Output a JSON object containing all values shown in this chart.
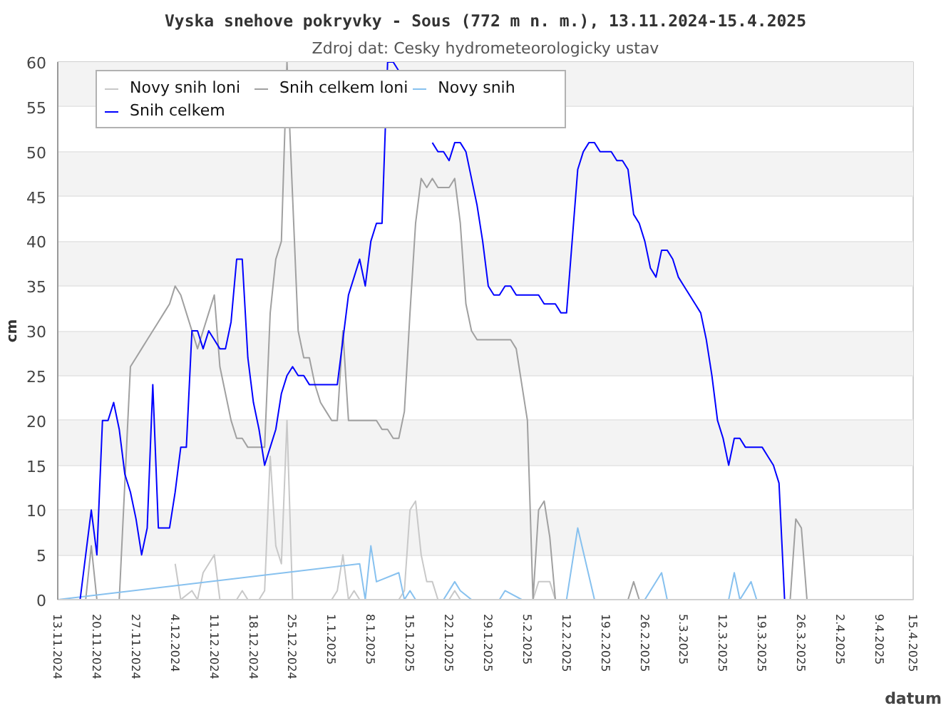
{
  "chart_data": {
    "type": "line",
    "title": "Vyska snehove pokryvky - Sous (772 m n. m.), 13.11.2024-15.4.2025",
    "subtitle": "Zdroj dat: Cesky hydrometeorologicky ustav",
    "xlabel": "datum",
    "ylabel": "cm",
    "xlim": [
      "2024-11-13",
      "2025-04-15"
    ],
    "ylim": [
      0,
      60
    ],
    "yticks": [
      0,
      5,
      10,
      15,
      20,
      25,
      30,
      35,
      40,
      45,
      50,
      55,
      60
    ],
    "grid": "y",
    "legend": "top left",
    "xticks": [
      {
        "value": "2024-11-13",
        "label": "13.11.2024"
      },
      {
        "value": "2024-11-20",
        "label": "20.11.2024"
      },
      {
        "value": "2024-11-27",
        "label": "27.11.2024"
      },
      {
        "value": "2024-12-04",
        "label": "4.12.2024"
      },
      {
        "value": "2024-12-11",
        "label": "11.12.2024"
      },
      {
        "value": "2024-12-18",
        "label": "18.12.2024"
      },
      {
        "value": "2024-12-25",
        "label": "25.12.2024"
      },
      {
        "value": "2025-01-01",
        "label": "1.1.2025"
      },
      {
        "value": "2025-01-08",
        "label": "8.1.2025"
      },
      {
        "value": "2025-01-15",
        "label": "15.1.2025"
      },
      {
        "value": "2025-01-22",
        "label": "22.1.2025"
      },
      {
        "value": "2025-01-29",
        "label": "29.1.2025"
      },
      {
        "value": "2025-02-05",
        "label": "5.2.2025"
      },
      {
        "value": "2025-02-12",
        "label": "12.2.2025"
      },
      {
        "value": "2025-02-19",
        "label": "19.2.2025"
      },
      {
        "value": "2025-02-26",
        "label": "26.2.2025"
      },
      {
        "value": "2025-03-05",
        "label": "5.3.2025"
      },
      {
        "value": "2025-03-12",
        "label": "12.3.2025"
      },
      {
        "value": "2025-03-19",
        "label": "19.3.2025"
      },
      {
        "value": "2025-03-26",
        "label": "26.3.2025"
      },
      {
        "value": "2025-04-02",
        "label": "2.4.2025"
      },
      {
        "value": "2025-04-09",
        "label": "9.4.2025"
      },
      {
        "value": "2025-04-15",
        "label": "15.4.2025"
      }
    ],
    "series": [
      {
        "name": "Novy snih loni",
        "color": "#c8c8c8",
        "x": [
          "2024-12-04",
          "2024-12-05",
          "2024-12-07",
          "2024-12-08",
          "2024-12-09",
          "2024-12-10",
          "2024-12-11",
          "2024-12-12",
          "2024-12-15",
          "2024-12-16",
          "2024-12-17",
          "2024-12-19",
          "2024-12-20",
          "2024-12-21",
          "2024-12-22",
          "2024-12-23",
          "2024-12-24",
          "2024-12-25",
          "2024-12-31",
          "2025-01-01",
          "2025-01-02",
          "2025-01-03",
          "2025-01-04",
          "2025-01-05",
          "2025-01-06",
          "2025-01-13",
          "2025-01-14",
          "2025-01-15",
          "2025-01-16",
          "2025-01-17",
          "2025-01-18",
          "2025-01-19",
          "2025-01-20",
          "2025-01-22",
          "2025-01-23",
          "2025-01-24",
          "2025-02-06",
          "2025-02-07",
          "2025-02-09",
          "2025-02-10"
        ],
        "values": [
          4,
          0,
          1,
          0,
          3,
          4,
          5,
          0,
          0,
          1,
          0,
          0,
          1,
          16,
          6,
          4,
          20,
          0,
          0,
          0,
          1,
          5,
          0,
          1,
          0,
          0,
          1,
          10,
          11,
          5,
          2,
          2,
          0,
          0,
          1,
          0,
          0,
          2,
          2,
          0
        ]
      },
      {
        "name": "Snih celkem loni",
        "color": "#a0a0a0",
        "x": [
          "2024-11-18",
          "2024-11-19",
          "2024-11-20",
          "2024-11-24",
          "2024-11-25",
          "2024-11-26",
          "2024-11-27",
          "2024-11-28",
          "2024-11-29",
          "2024-11-30",
          "2024-12-01",
          "2024-12-02",
          "2024-12-03",
          "2024-12-04",
          "2024-12-05",
          "2024-12-06",
          "2024-12-07",
          "2024-12-08",
          "2024-12-09",
          "2024-12-10",
          "2024-12-11",
          "2024-12-12",
          "2024-12-13",
          "2024-12-14",
          "2024-12-15",
          "2024-12-16",
          "2024-12-17",
          "2024-12-18",
          "2024-12-19",
          "2024-12-20",
          "2024-12-21",
          "2024-12-22",
          "2024-12-23",
          "2024-12-24",
          "2024-12-25",
          "2024-12-26",
          "2024-12-27",
          "2024-12-28",
          "2024-12-29",
          "2024-12-30",
          "2024-12-31",
          "2025-01-01",
          "2025-01-02",
          "2025-01-03",
          "2025-01-04",
          "2025-01-09",
          "2025-01-10",
          "2025-01-11",
          "2025-01-12",
          "2025-01-13",
          "2025-01-14",
          "2025-01-15",
          "2025-01-16",
          "2025-01-17",
          "2025-01-18",
          "2025-01-19",
          "2025-01-20",
          "2025-01-21",
          "2025-01-22",
          "2025-01-23",
          "2025-01-24",
          "2025-01-25",
          "2025-01-26",
          "2025-01-27",
          "2025-02-02",
          "2025-02-03",
          "2025-02-04",
          "2025-02-05",
          "2025-02-06",
          "2025-02-07",
          "2025-02-08",
          "2025-02-09",
          "2025-02-10",
          "2025-02-23",
          "2025-02-24",
          "2025-02-25",
          "2025-03-24",
          "2025-03-25",
          "2025-03-26",
          "2025-03-27"
        ],
        "values": [
          0,
          6,
          0,
          0,
          13,
          26,
          27,
          28,
          29,
          30,
          31,
          32,
          33,
          35,
          34,
          32,
          30,
          28,
          30,
          32,
          34,
          26,
          23,
          20,
          18,
          18,
          17,
          17,
          17,
          17,
          32,
          38,
          40,
          60,
          45,
          30,
          27,
          27,
          24,
          22,
          21,
          20,
          20,
          30,
          20,
          20,
          19,
          19,
          18,
          18,
          21,
          32,
          42,
          47,
          46,
          47,
          46,
          46,
          46,
          47,
          42,
          33,
          30,
          29,
          29,
          28,
          24,
          20,
          0,
          10,
          11,
          7,
          0,
          0,
          2,
          0,
          0,
          9,
          8,
          0
        ]
      },
      {
        "name": "Novy snih",
        "color": "#87c1ef",
        "x": [
          "2024-11-13",
          "2025-01-06",
          "2025-01-07",
          "2025-01-08",
          "2025-01-09",
          "2025-01-13",
          "2025-01-14",
          "2025-01-15",
          "2025-01-16",
          "2025-01-21",
          "2025-01-23",
          "2025-01-24",
          "2025-01-26",
          "2025-01-31",
          "2025-02-01",
          "2025-02-04",
          "2025-02-12",
          "2025-02-14",
          "2025-02-17",
          "2025-02-26",
          "2025-02-27",
          "2025-03-01",
          "2025-03-02",
          "2025-03-13",
          "2025-03-14",
          "2025-03-15",
          "2025-03-17",
          "2025-03-18"
        ],
        "values": [
          0,
          4,
          0,
          6,
          2,
          3,
          0,
          1,
          0,
          0,
          2,
          1,
          0,
          0,
          1,
          0,
          0,
          8,
          0,
          0,
          1,
          3,
          0,
          0,
          3,
          0,
          2,
          0
        ]
      },
      {
        "name": "Snih celkem",
        "color": "#0000ff",
        "x": [
          "2024-11-17",
          "2024-11-19",
          "2024-11-20",
          "2024-11-21",
          "2024-11-22",
          "2024-11-23",
          "2024-11-24",
          "2024-11-25",
          "2024-11-26",
          "2024-11-27",
          "2024-11-28",
          "2024-11-29",
          "2024-11-30",
          "2024-12-01",
          "2024-12-02",
          "2024-12-03",
          "2024-12-04",
          "2024-12-05",
          "2024-12-06",
          "2024-12-07",
          "2024-12-08",
          "2024-12-09",
          "2024-12-10",
          "2024-12-11",
          "2024-12-12",
          "2024-12-13",
          "2024-12-14",
          "2024-12-15",
          "2024-12-16",
          "2024-12-17",
          "2024-12-18",
          "2024-12-19",
          "2024-12-20",
          "2024-12-21",
          "2024-12-22",
          "2024-12-23",
          "2024-12-24",
          "2024-12-25",
          "2024-12-26",
          "2024-12-27",
          "2024-12-28",
          "2025-01-02",
          "2025-01-03",
          "2025-01-04",
          "2025-01-05",
          "2025-01-06",
          "2025-01-07",
          "2025-01-08",
          "2025-01-09",
          "2025-01-10",
          "2025-01-11",
          "2025-01-12",
          "2025-01-13",
          "2025-01-14",
          "2025-01-15",
          "2025-01-16",
          "2025-01-17",
          "2025-01-18",
          "2025-01-19",
          "2025-01-20",
          "2025-01-21",
          "2025-01-22",
          "2025-01-23",
          "2025-01-24",
          "2025-01-25",
          "2025-01-26",
          "2025-01-27",
          "2025-01-28",
          "2025-01-29",
          "2025-01-30",
          "2025-01-31",
          "2025-02-01",
          "2025-02-02",
          "2025-02-03",
          "2025-02-07",
          "2025-02-08",
          "2025-02-10",
          "2025-02-11",
          "2025-02-12",
          "2025-02-13",
          "2025-02-14",
          "2025-02-15",
          "2025-02-16",
          "2025-02-17",
          "2025-02-18",
          "2025-02-20",
          "2025-02-21",
          "2025-02-22",
          "2025-02-23",
          "2025-02-24",
          "2025-02-25",
          "2025-02-26",
          "2025-02-27",
          "2025-02-28",
          "2025-03-01",
          "2025-03-02",
          "2025-03-03",
          "2025-03-04",
          "2025-03-05",
          "2025-03-06",
          "2025-03-07",
          "2025-03-08",
          "2025-03-09",
          "2025-03-10",
          "2025-03-11",
          "2025-03-12",
          "2025-03-13",
          "2025-03-14",
          "2025-03-15",
          "2025-03-16",
          "2025-03-19",
          "2025-03-20",
          "2025-03-21",
          "2025-03-22",
          "2025-03-23"
        ],
        "values": [
          0,
          10,
          5,
          20,
          20,
          22,
          19,
          14,
          12,
          9,
          5,
          8,
          24,
          8,
          8,
          8,
          12,
          17,
          17,
          30,
          30,
          28,
          30,
          29,
          28,
          28,
          31,
          38,
          38,
          27,
          22,
          19,
          15,
          17,
          19,
          23,
          25,
          26,
          25,
          25,
          24,
          24,
          29,
          34,
          36,
          38,
          35,
          40,
          42,
          42,
          60,
          60,
          59,
          null,
          null,
          null,
          null,
          null,
          51,
          50,
          50,
          49,
          51,
          51,
          50,
          47,
          44,
          40,
          35,
          34,
          34,
          35,
          35,
          34,
          34,
          33,
          33,
          32,
          32,
          40,
          48,
          50,
          51,
          51,
          50,
          50,
          49,
          49,
          48,
          43,
          42,
          40,
          37,
          36,
          39,
          39,
          38,
          36,
          35,
          34,
          33,
          32,
          29,
          25,
          20,
          18,
          15,
          18,
          18,
          17,
          17,
          16,
          15,
          13,
          0
        ]
      }
    ]
  }
}
